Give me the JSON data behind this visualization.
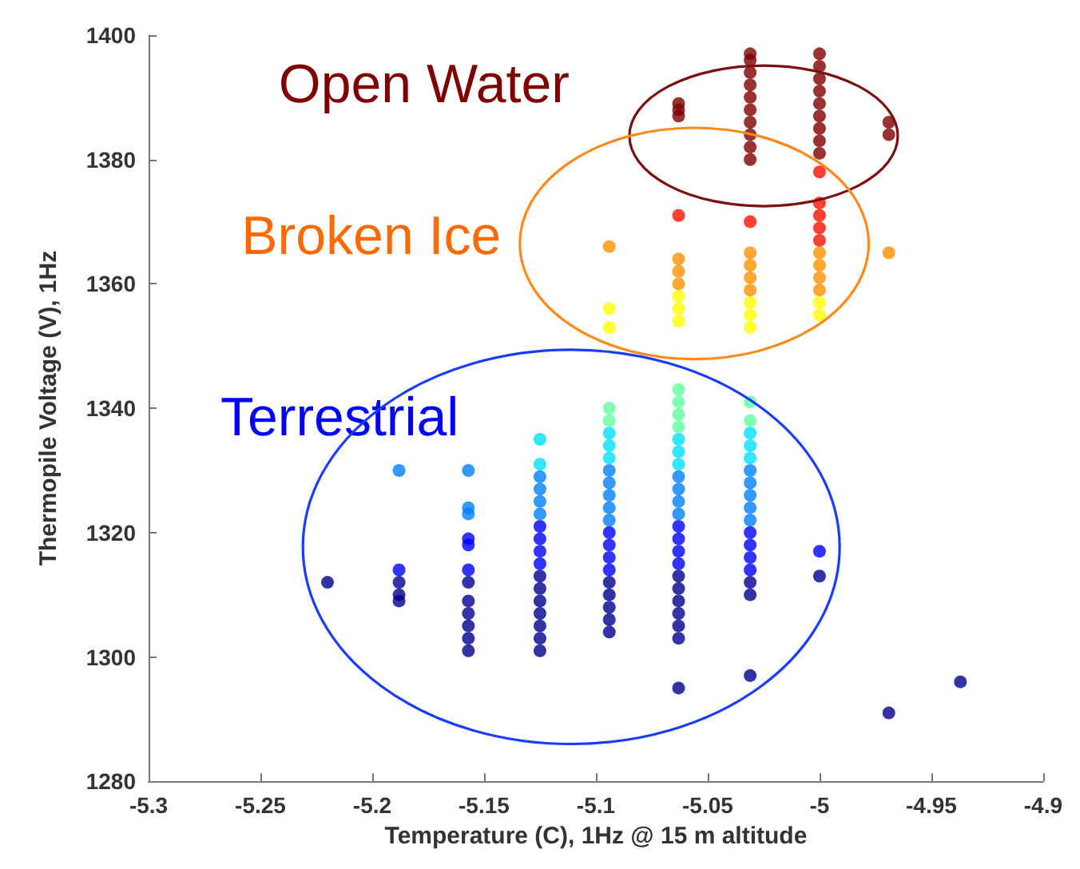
{
  "chart_data": {
    "type": "scatter",
    "xlabel": "Temperature (C), 1Hz @ 15 m altitude",
    "ylabel": "Thermopile Voltage (V), 1Hz",
    "xlim": [
      -5.3,
      -4.9
    ],
    "xticks": [
      -5.3,
      -5.25,
      -5.2,
      -5.15,
      -5.1,
      -5.05,
      -5,
      -4.95,
      -4.9
    ],
    "ylim": [
      1280,
      1400
    ],
    "yticks": [
      1280,
      1300,
      1320,
      1340,
      1360,
      1380,
      1400
    ],
    "grid": false,
    "marker": "circle",
    "annotations": [
      "Open Water",
      "Broken Ice",
      "Terrestrial"
    ],
    "series": [
      {
        "color": "#00008f",
        "x": [
          -5.22,
          -5.188,
          -5.188,
          -5.188,
          -5.157,
          -5.157,
          -5.157,
          -5.157,
          -5.157,
          -5.157,
          -5.125,
          -5.125,
          -5.125,
          -5.125,
          -5.125,
          -5.125,
          -5.125,
          -5.094,
          -5.094,
          -5.094,
          -5.094,
          -5.094,
          -5.063,
          -5.063,
          -5.063,
          -5.063,
          -5.063,
          -5.063,
          -5.063,
          -5.031,
          -5.031,
          -5.031,
          -5,
          -4.969,
          -4.937
        ],
        "values": [
          1312,
          1309,
          1310,
          1312,
          1301,
          1303,
          1305,
          1307,
          1309,
          1312,
          1301,
          1303,
          1305,
          1307,
          1309,
          1311,
          1313,
          1304,
          1306,
          1308,
          1310,
          1312,
          1295,
          1303,
          1305,
          1307,
          1309,
          1311,
          1313,
          1297,
          1310,
          1312,
          1313,
          1291,
          1296
        ]
      },
      {
        "color": "#0000ff",
        "x": [
          -5.188,
          -5.157,
          -5.157,
          -5.157,
          -5.125,
          -5.125,
          -5.125,
          -5.125,
          -5.094,
          -5.094,
          -5.094,
          -5.094,
          -5.063,
          -5.063,
          -5.063,
          -5.063,
          -5.031,
          -5.031,
          -5.031,
          -5.031,
          -5
        ],
        "values": [
          1314,
          1314,
          1318,
          1319,
          1315,
          1317,
          1319,
          1321,
          1314,
          1316,
          1318,
          1320,
          1315,
          1317,
          1319,
          1321,
          1314,
          1316,
          1318,
          1320,
          1317
        ]
      },
      {
        "color": "#0080ff",
        "x": [
          -5.188,
          -5.157,
          -5.157,
          -5.157,
          -5.125,
          -5.125,
          -5.125,
          -5.125,
          -5.094,
          -5.094,
          -5.094,
          -5.094,
          -5.094,
          -5.063,
          -5.063,
          -5.063,
          -5.063,
          -5.031,
          -5.031,
          -5.031,
          -5.031,
          -5.031
        ],
        "values": [
          1330,
          1323,
          1324,
          1330,
          1323,
          1325,
          1327,
          1329,
          1322,
          1324,
          1326,
          1328,
          1330,
          1323,
          1325,
          1327,
          1329,
          1322,
          1324,
          1326,
          1328,
          1330
        ]
      },
      {
        "color": "#00e0ff",
        "x": [
          -5.125,
          -5.125,
          -5.094,
          -5.094,
          -5.094,
          -5.063,
          -5.063,
          -5.063,
          -5.031,
          -5.031,
          -5.031
        ],
        "values": [
          1331,
          1335,
          1332,
          1334,
          1336,
          1331,
          1333,
          1335,
          1332,
          1334,
          1336
        ]
      },
      {
        "color": "#60ffa0",
        "x": [
          -5.094,
          -5.094,
          -5.063,
          -5.063,
          -5.063,
          -5.063,
          -5.031,
          -5.031
        ],
        "values": [
          1338,
          1340,
          1337,
          1339,
          1341,
          1343,
          1338,
          1341
        ]
      },
      {
        "color": "#ffff00",
        "x": [
          -5.094,
          -5.094,
          -5.063,
          -5.063,
          -5.063,
          -5.031,
          -5.031,
          -5.031,
          -5,
          -5
        ],
        "values": [
          1353,
          1356,
          1354,
          1356,
          1358,
          1353,
          1355,
          1357,
          1355,
          1357
        ]
      },
      {
        "color": "#ff9000",
        "x": [
          -5.094,
          -5.063,
          -5.063,
          -5.063,
          -5.031,
          -5.031,
          -5.031,
          -5.031,
          -5,
          -5,
          -5,
          -5,
          -4.969
        ],
        "values": [
          1366,
          1360,
          1362,
          1364,
          1359,
          1361,
          1363,
          1365,
          1359,
          1361,
          1363,
          1365,
          1365
        ]
      },
      {
        "color": "#ff1000",
        "x": [
          -5.063,
          -5.031,
          -5,
          -5,
          -5,
          -5,
          -5
        ],
        "values": [
          1371,
          1370,
          1367,
          1369,
          1371,
          1373,
          1378
        ]
      },
      {
        "color": "#800000",
        "x": [
          -5.063,
          -5.063,
          -5.063,
          -5.031,
          -5.031,
          -5.031,
          -5.031,
          -5.031,
          -5.031,
          -5.031,
          -5.031,
          -5.031,
          -5.031,
          -5,
          -5,
          -5,
          -5,
          -5,
          -5,
          -5,
          -5,
          -5,
          -4.969,
          -4.969
        ],
        "values": [
          1387,
          1388,
          1389,
          1380,
          1382,
          1384,
          1386,
          1388,
          1390,
          1392,
          1394,
          1396,
          1397,
          1381,
          1383,
          1385,
          1387,
          1389,
          1391,
          1393,
          1395,
          1397,
          1384,
          1386
        ]
      }
    ]
  }
}
